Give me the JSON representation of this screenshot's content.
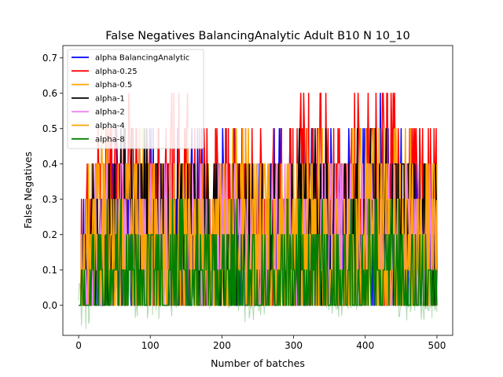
{
  "chart_data": {
    "type": "line",
    "title": "False Negatives BalancingAnalytic Adult B10 N 10_10",
    "xlabel": "Number of batches",
    "ylabel": "False Negatives",
    "xlim": [
      -22,
      522
    ],
    "ylim": [
      -0.085,
      0.735
    ],
    "xticks": [
      0,
      100,
      200,
      300,
      400,
      500
    ],
    "yticks": [
      0.0,
      0.1,
      0.2,
      0.3,
      0.4,
      0.5,
      0.6,
      0.7
    ],
    "legend": {
      "placement": "top-left"
    },
    "grid": false,
    "x": [
      0,
      25,
      50,
      75,
      100,
      125,
      150,
      175,
      200,
      225,
      250,
      275,
      300,
      325,
      350,
      375,
      400,
      425,
      450,
      475,
      500
    ],
    "series": [
      {
        "name": "alpha BalancingAnalytic",
        "color": "#0000ff",
        "values": [
          0.0,
          0.2,
          0.25,
          0.2,
          0.2,
          0.15,
          0.25,
          0.2,
          0.25,
          0.2,
          0.15,
          0.2,
          0.2,
          0.25,
          0.2,
          0.2,
          0.25,
          0.3,
          0.2,
          0.2,
          0.2
        ]
      },
      {
        "name": "alpha-0.25",
        "color": "#ff0000",
        "values": [
          0.0,
          0.3,
          0.3,
          0.35,
          0.3,
          0.3,
          0.35,
          0.3,
          0.3,
          0.3,
          0.25,
          0.3,
          0.3,
          0.35,
          0.3,
          0.3,
          0.35,
          0.4,
          0.3,
          0.3,
          0.3
        ]
      },
      {
        "name": "alpha-0.5",
        "color": "#ffa500",
        "values": [
          0.0,
          0.2,
          0.25,
          0.25,
          0.2,
          0.2,
          0.25,
          0.2,
          0.2,
          0.25,
          0.2,
          0.2,
          0.25,
          0.25,
          0.2,
          0.2,
          0.25,
          0.3,
          0.25,
          0.2,
          0.2
        ]
      },
      {
        "name": "alpha-1",
        "color": "#000000",
        "values": [
          0.0,
          0.2,
          0.2,
          0.25,
          0.2,
          0.2,
          0.2,
          0.2,
          0.25,
          0.2,
          0.15,
          0.2,
          0.2,
          0.25,
          0.2,
          0.2,
          0.25,
          0.3,
          0.2,
          0.2,
          0.2
        ]
      },
      {
        "name": "alpha-2",
        "color": "#ee82ee",
        "values": [
          0.0,
          0.15,
          0.2,
          0.2,
          0.15,
          0.15,
          0.2,
          0.15,
          0.2,
          0.15,
          0.15,
          0.15,
          0.2,
          0.2,
          0.15,
          0.15,
          0.2,
          0.25,
          0.15,
          0.15,
          0.15
        ]
      },
      {
        "name": "alpha-4",
        "color": "#ffa500",
        "values": [
          0.0,
          0.15,
          0.15,
          0.15,
          0.15,
          0.1,
          0.15,
          0.1,
          0.15,
          0.15,
          0.1,
          0.15,
          0.15,
          0.15,
          0.1,
          0.15,
          0.15,
          0.2,
          0.15,
          0.15,
          0.15
        ]
      },
      {
        "name": "alpha-8",
        "color": "#008000",
        "values": [
          0.0,
          0.05,
          0.1,
          0.05,
          0.05,
          0.05,
          0.1,
          0.05,
          0.1,
          0.05,
          0.05,
          0.1,
          0.1,
          0.1,
          0.05,
          0.05,
          0.1,
          0.15,
          0.05,
          0.05,
          0.05
        ]
      }
    ]
  }
}
